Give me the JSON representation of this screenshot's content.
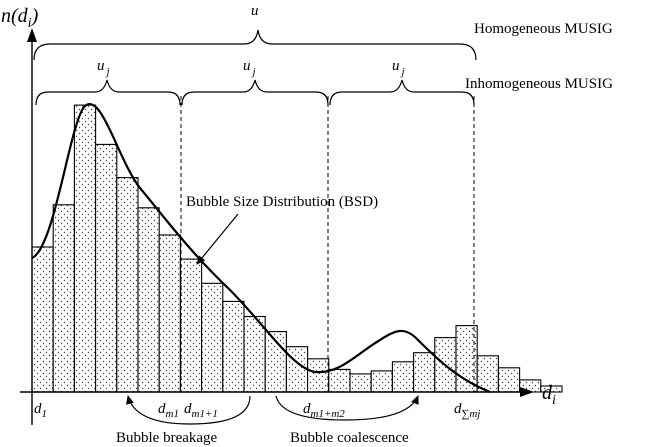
{
  "axes": {
    "y_label_main": "n(d",
    "y_label_sub": "i",
    "y_label_close": ")",
    "x_label_main": "d",
    "x_label_sub": "i"
  },
  "braces": {
    "homogeneous_symbol": "u",
    "homogeneous_label": "Homogeneous MUSIG",
    "inhomogeneous_symbol_main": "u",
    "inhomogeneous_symbol_sub": "j",
    "inhomogeneous_label": "Inhomogeneous MUSIG"
  },
  "annotations": {
    "bsd_label": "Bubble Size Distribution (BSD)",
    "breakage_label": "Bubble breakage",
    "coalescence_label": "Bubble coalescence"
  },
  "x_ticks": [
    {
      "main": "d",
      "sub": "1"
    },
    {
      "main": "d",
      "sub": "m1"
    },
    {
      "main": "d",
      "sub": "m1+1"
    },
    {
      "main": "d",
      "sub": "m1+m2"
    },
    {
      "main": "d",
      "sub": "∑mj"
    }
  ],
  "chart_data": {
    "type": "bar",
    "title": "",
    "xlabel": "d_i",
    "ylabel": "n(d_i)",
    "values": [
      0.48,
      0.62,
      0.95,
      0.82,
      0.71,
      0.61,
      0.52,
      0.44,
      0.36,
      0.3,
      0.25,
      0.2,
      0.15,
      0.11,
      0.075,
      0.06,
      0.07,
      0.1,
      0.13,
      0.18,
      0.22,
      0.12,
      0.08,
      0.04,
      0.02
    ]
  }
}
